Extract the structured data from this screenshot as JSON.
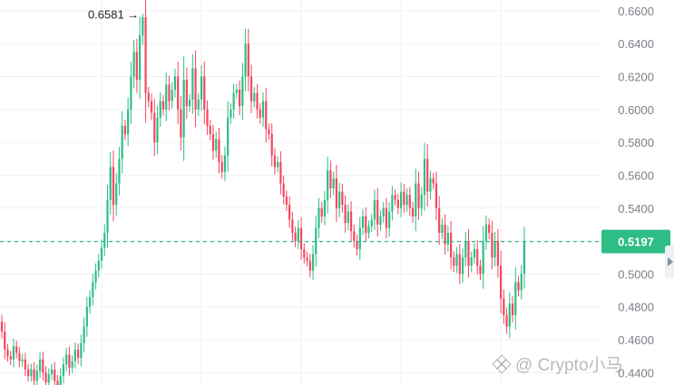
{
  "chart_data": {
    "type": "candlestick",
    "title": "",
    "xlabel": "",
    "ylabel": "",
    "ylim": [
      0.4325,
      0.661
    ],
    "y_ticks": [
      "0.6600",
      "0.6400",
      "0.6200",
      "0.6000",
      "0.5800",
      "0.5600",
      "0.5400",
      "0.5200",
      "0.5000",
      "0.4800",
      "0.4600",
      "0.4400"
    ],
    "grid": true,
    "colors": {
      "up": "#2ebd85",
      "down": "#f6465d",
      "current_price_line": "#2ebd85",
      "grid": "#f0f1f3"
    },
    "peak": {
      "label": "0.6581",
      "arrow": "→",
      "value": 0.6581
    },
    "current_price": {
      "label": "0.5197",
      "value": 0.5197
    },
    "closes": [
      0.465,
      0.454,
      0.45,
      0.448,
      0.456,
      0.452,
      0.447,
      0.448,
      0.442,
      0.438,
      0.442,
      0.435,
      0.441,
      0.448,
      0.44,
      0.434,
      0.439,
      0.442,
      0.435,
      0.43,
      0.438,
      0.445,
      0.451,
      0.443,
      0.447,
      0.454,
      0.449,
      0.458,
      0.468,
      0.48,
      0.486,
      0.495,
      0.502,
      0.508,
      0.516,
      0.525,
      0.545,
      0.565,
      0.542,
      0.555,
      0.57,
      0.59,
      0.585,
      0.6,
      0.62,
      0.635,
      0.618,
      0.645,
      0.656,
      0.61,
      0.605,
      0.598,
      0.58,
      0.595,
      0.605,
      0.6,
      0.615,
      0.605,
      0.612,
      0.62,
      0.6,
      0.583,
      0.618,
      0.602,
      0.606,
      0.625,
      0.6,
      0.606,
      0.62,
      0.6,
      0.59,
      0.585,
      0.575,
      0.582,
      0.568,
      0.562,
      0.572,
      0.595,
      0.6,
      0.61,
      0.612,
      0.602,
      0.62,
      0.64,
      0.62,
      0.605,
      0.61,
      0.6,
      0.595,
      0.605,
      0.588,
      0.585,
      0.572,
      0.565,
      0.568,
      0.555,
      0.547,
      0.542,
      0.533,
      0.525,
      0.52,
      0.528,
      0.515,
      0.51,
      0.508,
      0.502,
      0.512,
      0.528,
      0.54,
      0.535,
      0.545,
      0.563,
      0.552,
      0.558,
      0.54,
      0.55,
      0.542,
      0.531,
      0.538,
      0.526,
      0.52,
      0.515,
      0.528,
      0.535,
      0.525,
      0.529,
      0.533,
      0.545,
      0.53,
      0.535,
      0.54,
      0.528,
      0.538,
      0.548,
      0.545,
      0.54,
      0.55,
      0.542,
      0.548,
      0.54,
      0.535,
      0.555,
      0.54,
      0.548,
      0.57,
      0.55,
      0.558,
      0.555,
      0.54,
      0.525,
      0.53,
      0.518,
      0.525,
      0.51,
      0.505,
      0.512,
      0.5,
      0.51,
      0.52,
      0.505,
      0.51,
      0.515,
      0.505,
      0.5,
      0.52,
      0.53,
      0.525,
      0.51,
      0.52,
      0.505,
      0.485,
      0.475,
      0.468,
      0.482,
      0.475,
      0.495,
      0.49,
      0.5,
      0.5197
    ],
    "bottom_partial_label": "0.4400"
  },
  "watermark": {
    "text": "@ Crypto小马"
  },
  "icons": {
    "scroll_handle": "chevron-right-icon",
    "watermark_logo": "binance-logo-icon"
  }
}
